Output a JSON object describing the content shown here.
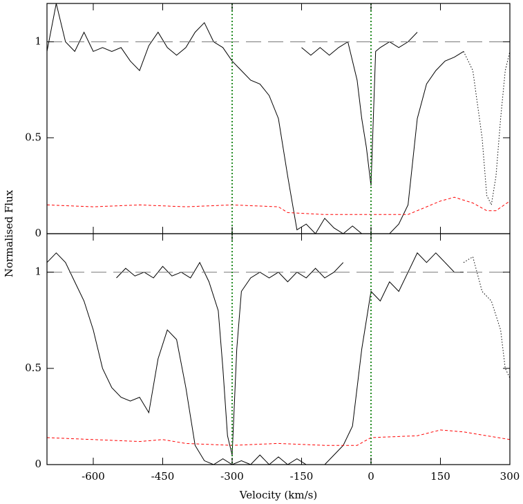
{
  "chart_data": [
    {
      "type": "line",
      "ylabel": "Normalised Flux",
      "xlim": [
        -700,
        300
      ],
      "ylim": [
        0,
        1.2
      ],
      "xticks": [
        -600,
        -450,
        -300,
        -150,
        0,
        150,
        300
      ],
      "yticks": [
        0,
        0.5,
        1
      ],
      "vlines": [
        -300,
        0
      ],
      "vline_color": "#228b22",
      "series": [
        {
          "color": "#000000",
          "style": "solid",
          "x": [
            -700,
            -680,
            -660,
            -640,
            -620,
            -600,
            -580,
            -560,
            -540,
            -520,
            -500,
            -480,
            -460,
            -440,
            -420,
            -400,
            -380,
            -360,
            -340,
            -320,
            -300,
            -280,
            -260,
            -240,
            -220,
            -200,
            -180,
            -160,
            -140,
            -120,
            -100,
            -80,
            -60,
            -40,
            -20,
            0,
            20,
            40,
            60,
            80,
            100,
            120,
            140,
            160,
            180,
            200
          ],
          "values": [
            0.95,
            1.2,
            1.0,
            0.95,
            1.05,
            0.95,
            0.97,
            0.95,
            0.97,
            0.9,
            0.85,
            0.98,
            1.05,
            0.97,
            0.93,
            0.97,
            1.05,
            1.1,
            1.0,
            0.97,
            0.9,
            0.85,
            0.8,
            0.78,
            0.72,
            0.6,
            0.3,
            0.02,
            0.05,
            0.0,
            0.08,
            0.03,
            0.0,
            0.04,
            0.0,
            0.0,
            0.0,
            0.0,
            0.05,
            0.15,
            0.6,
            0.78,
            0.85,
            0.9,
            0.92,
            0.95
          ]
        },
        {
          "color": "#000000",
          "style": "solid",
          "x": [
            -150,
            -130,
            -110,
            -90,
            -70,
            -50,
            -30,
            -20,
            -10,
            0,
            10,
            20,
            40,
            60,
            80,
            100
          ],
          "values": [
            0.97,
            0.93,
            0.97,
            0.93,
            0.97,
            1.0,
            0.8,
            0.6,
            0.45,
            0.25,
            0.95,
            0.97,
            1.0,
            0.97,
            1.0,
            1.05
          ]
        },
        {
          "color": "#000000",
          "style": "dotted",
          "x": [
            200,
            220,
            240,
            250,
            260,
            270,
            280,
            290,
            300
          ],
          "values": [
            0.95,
            0.85,
            0.5,
            0.2,
            0.15,
            0.3,
            0.6,
            0.85,
            0.95
          ]
        },
        {
          "color": "#ff0000",
          "style": "dashed",
          "x": [
            -700,
            -600,
            -500,
            -400,
            -300,
            -200,
            -180,
            -100,
            0,
            80,
            100,
            150,
            180,
            220,
            250,
            270,
            300
          ],
          "values": [
            0.15,
            0.14,
            0.15,
            0.14,
            0.15,
            0.14,
            0.11,
            0.1,
            0.1,
            0.1,
            0.12,
            0.17,
            0.19,
            0.16,
            0.12,
            0.12,
            0.17
          ]
        },
        {
          "color": "#777777",
          "style": "longdash",
          "x": [
            -700,
            300
          ],
          "values": [
            1,
            1
          ]
        }
      ]
    },
    {
      "type": "line",
      "xlabel": "Velocity (km/s)",
      "xlim": [
        -700,
        300
      ],
      "ylim": [
        0,
        1.2
      ],
      "xticks": [
        -600,
        -450,
        -300,
        -150,
        0,
        150,
        300
      ],
      "yticks": [
        0,
        0.5,
        1
      ],
      "vlines": [
        -300,
        0
      ],
      "vline_color": "#228b22",
      "series": [
        {
          "color": "#000000",
          "style": "solid",
          "x": [
            -700,
            -680,
            -660,
            -640,
            -620,
            -600,
            -580,
            -560,
            -540,
            -520,
            -500,
            -480,
            -460,
            -440,
            -420,
            -400,
            -380,
            -360,
            -340,
            -320,
            -300,
            -280,
            -260,
            -240,
            -220,
            -200,
            -180,
            -160,
            -140,
            -120,
            -100,
            -80,
            -60,
            -40,
            -20,
            0,
            20,
            40,
            60,
            80,
            100,
            120,
            140,
            160,
            180,
            200
          ],
          "values": [
            1.05,
            1.1,
            1.05,
            0.95,
            0.85,
            0.7,
            0.5,
            0.4,
            0.35,
            0.33,
            0.35,
            0.27,
            0.55,
            0.7,
            0.65,
            0.4,
            0.1,
            0.02,
            0.0,
            0.03,
            0.0,
            0.02,
            0.0,
            0.05,
            0.0,
            0.04,
            0.0,
            0.03,
            0.0,
            0.0,
            0.0,
            0.05,
            0.1,
            0.2,
            0.6,
            0.9,
            0.85,
            0.95,
            0.9,
            1.0,
            1.1,
            1.05,
            1.1,
            1.05,
            1.0,
            1.0
          ]
        },
        {
          "color": "#000000",
          "style": "solid",
          "x": [
            -550,
            -530,
            -510,
            -490,
            -470,
            -450,
            -430,
            -410,
            -390,
            -370,
            -350,
            -330,
            -320,
            -310,
            -300,
            -290,
            -280,
            -260,
            -240,
            -220,
            -200,
            -180,
            -160,
            -140,
            -120,
            -100,
            -80,
            -60
          ],
          "values": [
            0.97,
            1.02,
            0.98,
            1.0,
            0.97,
            1.03,
            0.98,
            1.0,
            0.97,
            1.05,
            0.95,
            0.8,
            0.5,
            0.15,
            0.05,
            0.6,
            0.9,
            0.97,
            1.0,
            0.97,
            1.0,
            0.95,
            1.0,
            0.97,
            1.02,
            0.97,
            1.0,
            1.05
          ]
        },
        {
          "color": "#000000",
          "style": "dotted",
          "x": [
            200,
            220,
            240,
            260,
            280,
            290,
            300
          ],
          "values": [
            1.05,
            1.08,
            0.9,
            0.85,
            0.7,
            0.5,
            0.45
          ]
        },
        {
          "color": "#ff0000",
          "style": "dashed",
          "x": [
            -700,
            -600,
            -500,
            -450,
            -400,
            -300,
            -200,
            -100,
            -30,
            0,
            100,
            150,
            200,
            250,
            300
          ],
          "values": [
            0.14,
            0.13,
            0.12,
            0.13,
            0.11,
            0.1,
            0.11,
            0.1,
            0.1,
            0.14,
            0.15,
            0.18,
            0.17,
            0.15,
            0.13
          ]
        },
        {
          "color": "#777777",
          "style": "longdash",
          "x": [
            -700,
            300
          ],
          "values": [
            1,
            1
          ]
        }
      ]
    }
  ]
}
